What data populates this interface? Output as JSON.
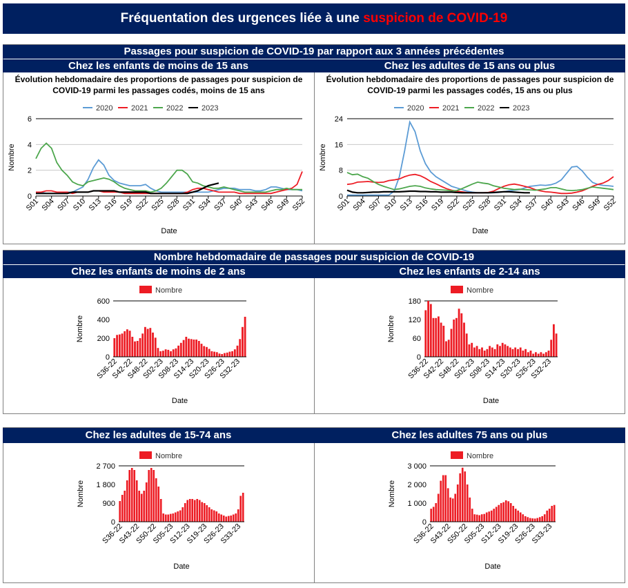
{
  "header": {
    "title_prefix": "Fréquentation des urgences liée à une ",
    "title_highlight": "suspicion de COVID-19"
  },
  "section1": {
    "title": "Passages pour suspicion de COVID-19 par rapport aux 3 années précédentes",
    "left_subtitle": "Chez les enfants de moins de 15 ans",
    "right_subtitle": "Chez les adultes de 15 ans ou plus"
  },
  "section2": {
    "title": "Nombre hebdomadaire de passages pour suspicion de COVID-19",
    "left_subtitle": "Chez les enfants de moins de 2 ans",
    "right_subtitle": "Chez les enfants de 2-14 ans"
  },
  "section3": {
    "left_subtitle": "Chez les adultes de 15-74 ans",
    "right_subtitle": "Chez les adultes 75 ans ou plus"
  },
  "colors": {
    "s2020": "#5b9bd5",
    "s2021": "#ed1c24",
    "s2022": "#4ca64c",
    "s2023": "#000000",
    "bar": "#ed1c24",
    "navy": "#002060"
  },
  "chart_data": [
    {
      "id": "line-children",
      "type": "line",
      "title_lines": [
        "Évolution hebdomadaire des proportions de passages pour suspicion de",
        "COVID-19 parmi les passages codés, moins de 15 ans"
      ],
      "xlabel": "Date",
      "ylabel": "Nombre",
      "ylim": [
        0,
        6
      ],
      "yticks": [
        "0",
        "2",
        "4",
        "6"
      ],
      "xticks": [
        "S01",
        "S04",
        "S07",
        "S10",
        "S13",
        "S16",
        "S19",
        "S22",
        "S25",
        "S28",
        "S31",
        "S34",
        "S37",
        "S40",
        "S43",
        "S46",
        "S49",
        "S52"
      ],
      "series": [
        {
          "name": "2020",
          "values": [
            0.2,
            0.3,
            0.2,
            0.2,
            0.2,
            0.2,
            0.3,
            0.3,
            0.5,
            0.7,
            1.3,
            2.2,
            2.8,
            2.4,
            1.6,
            1.2,
            1.0,
            0.9,
            0.8,
            0.8,
            0.8,
            0.9,
            0.6,
            0.4,
            0.3,
            0.3,
            0.3,
            0.3,
            0.3,
            0.3,
            0.3,
            0.3,
            0.3,
            0.3,
            0.4,
            0.5,
            0.6,
            0.6,
            0.6,
            0.5,
            0.5,
            0.5,
            0.4,
            0.4,
            0.5,
            0.7,
            0.7,
            0.6,
            0.5,
            0.5,
            0.5,
            0.4
          ]
        },
        {
          "name": "2021",
          "values": [
            0.3,
            0.3,
            0.4,
            0.4,
            0.3,
            0.3,
            0.3,
            0.2,
            0.3,
            0.3,
            0.3,
            0.4,
            0.4,
            0.3,
            0.3,
            0.3,
            0.3,
            0.2,
            0.2,
            0.2,
            0.2,
            0.2,
            0.2,
            0.2,
            0.2,
            0.2,
            0.2,
            0.2,
            0.2,
            0.3,
            0.5,
            0.6,
            0.6,
            0.5,
            0.4,
            0.3,
            0.3,
            0.3,
            0.3,
            0.2,
            0.2,
            0.2,
            0.2,
            0.2,
            0.2,
            0.2,
            0.3,
            0.4,
            0.5,
            0.6,
            0.9,
            1.9
          ]
        },
        {
          "name": "2022",
          "values": [
            2.9,
            3.7,
            4.1,
            3.7,
            2.6,
            2.0,
            1.6,
            1.1,
            0.9,
            0.8,
            1.1,
            1.2,
            1.3,
            1.4,
            1.3,
            1.1,
            0.8,
            0.6,
            0.5,
            0.4,
            0.4,
            0.4,
            0.3,
            0.4,
            0.6,
            1.0,
            1.5,
            2.0,
            2.0,
            1.7,
            1.1,
            1.0,
            0.8,
            0.7,
            0.6,
            0.6,
            0.7,
            0.6,
            0.5,
            0.4,
            0.3,
            0.3,
            0.3,
            0.3,
            0.3,
            0.4,
            0.5,
            0.5,
            0.6,
            0.5,
            0.5,
            0.5
          ]
        },
        {
          "name": "2023",
          "values": [
            0.2,
            0.2,
            0.2,
            0.2,
            0.2,
            0.2,
            0.2,
            0.3,
            0.3,
            0.3,
            0.3,
            0.4,
            0.4,
            0.4,
            0.4,
            0.4,
            0.3,
            0.3,
            0.3,
            0.3,
            0.3,
            0.3,
            0.2,
            0.2,
            0.2,
            0.2,
            0.2,
            0.2,
            0.2,
            0.2,
            0.3,
            0.4,
            0.6,
            0.8,
            0.9,
            1.0
          ]
        }
      ]
    },
    {
      "id": "line-adults",
      "type": "line",
      "title_lines": [
        "Évolution hebdomadaire des proportions de passages pour suspicion de",
        "COVID-19 parmi les passages codés, 15 ans ou plus"
      ],
      "xlabel": "Date",
      "ylabel": "Nombre",
      "ylim": [
        0,
        24
      ],
      "yticks": [
        "0",
        "8",
        "16",
        "24"
      ],
      "xticks": [
        "S01",
        "S04",
        "S07",
        "S10",
        "S13",
        "S16",
        "S19",
        "S22",
        "S25",
        "S28",
        "S31",
        "S34",
        "S37",
        "S40",
        "S43",
        "S46",
        "S49",
        "S52"
      ],
      "series": [
        {
          "name": "2020",
          "values": [
            0.3,
            0.3,
            0.3,
            0.3,
            0.3,
            0.3,
            0.3,
            0.3,
            0.3,
            1.5,
            6.0,
            14.0,
            23.0,
            20.0,
            14.0,
            10.0,
            7.5,
            6.0,
            5.0,
            4.0,
            3.0,
            2.5,
            2.0,
            1.5,
            1.2,
            1.0,
            1.0,
            1.0,
            1.0,
            1.1,
            1.3,
            1.6,
            1.8,
            2.0,
            2.5,
            3.0,
            3.2,
            3.4,
            3.3,
            3.5,
            4.0,
            5.0,
            7.0,
            9.0,
            9.2,
            7.8,
            5.8,
            4.2,
            3.6,
            3.3,
            3.2,
            3.0
          ]
        },
        {
          "name": "2021",
          "values": [
            3.6,
            3.8,
            4.3,
            4.4,
            4.5,
            4.3,
            4.2,
            4.3,
            4.8,
            5.0,
            5.3,
            6.0,
            6.5,
            6.7,
            6.3,
            5.5,
            4.5,
            3.8,
            3.0,
            2.3,
            1.8,
            1.5,
            1.3,
            1.1,
            1.0,
            1.0,
            1.0,
            1.1,
            1.5,
            2.3,
            3.0,
            3.5,
            3.7,
            3.4,
            3.0,
            2.6,
            2.0,
            1.6,
            1.3,
            1.2,
            1.0,
            0.8,
            0.8,
            0.9,
            1.2,
            1.6,
            2.3,
            3.0,
            3.6,
            4.0,
            4.8,
            6.0
          ]
        },
        {
          "name": "2022",
          "values": [
            7.3,
            6.6,
            6.8,
            6.0,
            5.5,
            4.5,
            3.6,
            3.0,
            2.5,
            2.0,
            2.2,
            2.6,
            3.0,
            3.2,
            3.0,
            2.5,
            2.2,
            2.0,
            1.9,
            1.8,
            1.6,
            1.7,
            2.3,
            3.0,
            3.7,
            4.3,
            4.0,
            3.8,
            3.2,
            2.8,
            2.4,
            2.2,
            2.0,
            2.1,
            2.0,
            1.9,
            1.8,
            2.0,
            2.2,
            2.6,
            2.6,
            2.2,
            1.8,
            1.7,
            1.8,
            2.0,
            2.4,
            2.8,
            2.6,
            2.4,
            2.2,
            2.0
          ]
        },
        {
          "name": "2023",
          "values": [
            1.8,
            1.2,
            1.0,
            1.0,
            1.1,
            1.2,
            1.2,
            1.3,
            1.3,
            1.3,
            1.3,
            1.4,
            1.5,
            1.5,
            1.4,
            1.4,
            1.3,
            1.3,
            1.2,
            1.2,
            1.2,
            1.1,
            1.0,
            1.0,
            1.0,
            1.0,
            1.0,
            1.0,
            1.1,
            1.2,
            1.3,
            1.3,
            1.2,
            1.1,
            1.0,
            1.0
          ]
        }
      ]
    },
    {
      "id": "bar-lt2",
      "type": "bar",
      "legend": "Nombre",
      "xlabel": "Date",
      "ylabel": "Nombre",
      "ylim": [
        0,
        600
      ],
      "yticks": [
        "0",
        "200",
        "400",
        "600"
      ],
      "categories": [
        "S36-22",
        "S37-22",
        "S38-22",
        "S39-22",
        "S40-22",
        "S41-22",
        "S42-22",
        "S43-22",
        "S44-22",
        "S45-22",
        "S46-22",
        "S47-22",
        "S48-22",
        "S49-22",
        "S50-22",
        "S51-22",
        "S52-22",
        "S01-23",
        "S02-23",
        "S03-23",
        "S04-23",
        "S05-23",
        "S06-23",
        "S07-23",
        "S08-23",
        "S09-23",
        "S10-23",
        "S11-23",
        "S12-23",
        "S13-23",
        "S14-23",
        "S15-23",
        "S16-23",
        "S17-23",
        "S18-23",
        "S19-23",
        "S20-23",
        "S21-23",
        "S22-23",
        "S23-23",
        "S24-23",
        "S25-23",
        "S26-23",
        "S27-23",
        "S28-23",
        "S29-23",
        "S30-23",
        "S31-23",
        "S32-23",
        "S33-23",
        "S34-23",
        "S35-23"
      ],
      "xtick_labels": [
        "S36-22",
        "S42-22",
        "S48-22",
        "S02-23",
        "S08-23",
        "S14-23",
        "S20-23",
        "S26-23",
        "S32-23"
      ],
      "values": [
        200,
        235,
        240,
        250,
        275,
        295,
        280,
        215,
        165,
        170,
        200,
        250,
        320,
        300,
        310,
        260,
        205,
        95,
        60,
        65,
        80,
        75,
        60,
        80,
        90,
        120,
        150,
        180,
        215,
        195,
        190,
        185,
        185,
        170,
        140,
        115,
        105,
        85,
        60,
        55,
        50,
        35,
        30,
        40,
        45,
        55,
        60,
        80,
        120,
        190,
        320,
        430
      ]
    },
    {
      "id": "bar-2to14",
      "type": "bar",
      "legend": "Nombre",
      "xlabel": "Date",
      "ylabel": "Nombre",
      "ylim": [
        0,
        180
      ],
      "yticks": [
        "0",
        "60",
        "120",
        "180"
      ],
      "categories": [
        "S36-22",
        "S37-22",
        "S38-22",
        "S39-22",
        "S40-22",
        "S41-22",
        "S42-22",
        "S43-22",
        "S44-22",
        "S45-22",
        "S46-22",
        "S47-22",
        "S48-22",
        "S49-22",
        "S50-22",
        "S51-22",
        "S52-22",
        "S01-23",
        "S02-23",
        "S03-23",
        "S04-23",
        "S05-23",
        "S06-23",
        "S07-23",
        "S08-23",
        "S09-23",
        "S10-23",
        "S11-23",
        "S12-23",
        "S13-23",
        "S14-23",
        "S15-23",
        "S16-23",
        "S17-23",
        "S18-23",
        "S19-23",
        "S20-23",
        "S21-23",
        "S22-23",
        "S23-23",
        "S24-23",
        "S25-23",
        "S26-23",
        "S27-23",
        "S28-23",
        "S29-23",
        "S30-23",
        "S31-23",
        "S32-23",
        "S33-23",
        "S34-23",
        "S35-23"
      ],
      "xtick_labels": [
        "S36-22",
        "S42-22",
        "S48-22",
        "S02-23",
        "S08-23",
        "S14-23",
        "S20-23",
        "S26-23",
        "S32-23"
      ],
      "values": [
        150,
        180,
        170,
        125,
        125,
        130,
        110,
        100,
        50,
        55,
        90,
        120,
        125,
        155,
        140,
        110,
        75,
        40,
        45,
        30,
        35,
        25,
        30,
        20,
        25,
        35,
        30,
        25,
        40,
        35,
        45,
        40,
        35,
        30,
        25,
        30,
        25,
        30,
        20,
        25,
        15,
        20,
        10,
        15,
        10,
        15,
        10,
        15,
        20,
        55,
        105,
        75
      ]
    },
    {
      "id": "bar-15to74",
      "type": "bar",
      "legend": "Nombre",
      "xlabel": "Date",
      "ylabel": "Nombre",
      "ylim": [
        0,
        2700
      ],
      "yticks": [
        "0",
        "900",
        "1 800",
        "2 700"
      ],
      "categories": [
        "S36-22",
        "S37-22",
        "S38-22",
        "S39-22",
        "S40-22",
        "S41-22",
        "S42-22",
        "S43-22",
        "S44-22",
        "S45-22",
        "S46-22",
        "S47-22",
        "S48-22",
        "S49-22",
        "S50-22",
        "S51-22",
        "S52-22",
        "S01-23",
        "S02-23",
        "S03-23",
        "S04-23",
        "S05-23",
        "S06-23",
        "S07-23",
        "S08-23",
        "S09-23",
        "S10-23",
        "S11-23",
        "S12-23",
        "S13-23",
        "S14-23",
        "S15-23",
        "S16-23",
        "S17-23",
        "S18-23",
        "S19-23",
        "S20-23",
        "S21-23",
        "S22-23",
        "S23-23",
        "S24-23",
        "S25-23",
        "S26-23",
        "S27-23",
        "S28-23",
        "S29-23",
        "S30-23",
        "S31-23",
        "S32-23",
        "S33-23",
        "S34-23",
        "S35-23"
      ],
      "xtick_labels": [
        "S36-22",
        "S43-22",
        "S50-22",
        "S05-23",
        "S12-23",
        "S19-23",
        "S26-23",
        "S33-23"
      ],
      "values": [
        1000,
        1300,
        1500,
        2000,
        2500,
        2600,
        2500,
        2000,
        1500,
        1350,
        1500,
        1900,
        2500,
        2600,
        2500,
        2100,
        1700,
        1100,
        400,
        350,
        350,
        380,
        400,
        450,
        500,
        550,
        700,
        900,
        1050,
        1100,
        1100,
        1050,
        1100,
        1050,
        950,
        900,
        800,
        700,
        600,
        550,
        500,
        400,
        350,
        300,
        250,
        280,
        300,
        350,
        400,
        600,
        1250,
        1400
      ]
    },
    {
      "id": "bar-75plus",
      "type": "bar",
      "legend": "Nombre",
      "xlabel": "Date",
      "ylabel": "Nombre",
      "ylim": [
        0,
        3000
      ],
      "yticks": [
        "0",
        "1 000",
        "2 000",
        "3 000"
      ],
      "categories": [
        "S36-22",
        "S37-22",
        "S38-22",
        "S39-22",
        "S40-22",
        "S41-22",
        "S42-22",
        "S43-22",
        "S44-22",
        "S45-22",
        "S46-22",
        "S47-22",
        "S48-22",
        "S49-22",
        "S50-22",
        "S51-22",
        "S52-22",
        "S01-23",
        "S02-23",
        "S03-23",
        "S04-23",
        "S05-23",
        "S06-23",
        "S07-23",
        "S08-23",
        "S09-23",
        "S10-23",
        "S11-23",
        "S12-23",
        "S13-23",
        "S14-23",
        "S15-23",
        "S16-23",
        "S17-23",
        "S18-23",
        "S19-23",
        "S20-23",
        "S21-23",
        "S22-23",
        "S23-23",
        "S24-23",
        "S25-23",
        "S26-23",
        "S27-23",
        "S28-23",
        "S29-23",
        "S30-23",
        "S31-23",
        "S32-23",
        "S33-23",
        "S34-23",
        "S35-23"
      ],
      "xtick_labels": [
        "S36-22",
        "S43-22",
        "S50-22",
        "S05-23",
        "S12-23",
        "S19-23",
        "S26-23",
        "S33-23"
      ],
      "values": [
        700,
        800,
        1000,
        1500,
        2200,
        2500,
        2500,
        1800,
        1300,
        1250,
        1500,
        2000,
        2600,
        2900,
        2700,
        2000,
        1300,
        700,
        400,
        380,
        350,
        400,
        420,
        500,
        550,
        600,
        700,
        800,
        900,
        1000,
        1050,
        1150,
        1100,
        1000,
        850,
        700,
        600,
        500,
        400,
        300,
        250,
        200,
        180,
        170,
        200,
        250,
        300,
        400,
        600,
        700,
        850,
        900
      ]
    }
  ]
}
